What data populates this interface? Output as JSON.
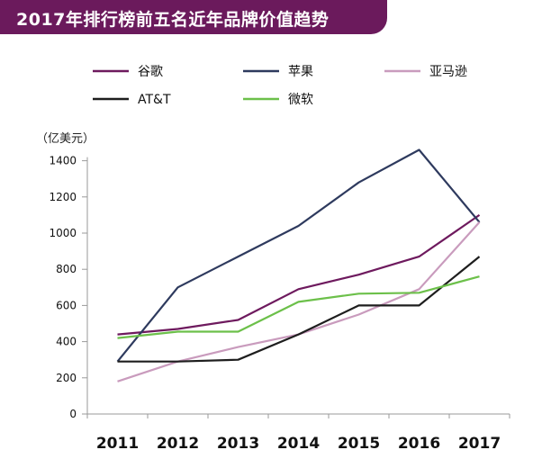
{
  "title": "2017年排行榜前五名近年品牌价值趋势",
  "colors": {
    "banner": "#6b1a5c",
    "axis": "#9a9a9a"
  },
  "chart_data": {
    "type": "line",
    "title": "2017年排行榜前五名近年品牌价值趋势",
    "xlabel": "",
    "ylabel": "（亿美元）",
    "x": [
      "2011",
      "2012",
      "2013",
      "2014",
      "2015",
      "2016",
      "2017"
    ],
    "yticks": [
      0,
      200,
      400,
      600,
      800,
      1000,
      1200,
      1400
    ],
    "ylim": [
      0,
      1400
    ],
    "grid": false,
    "legend_placement": "top",
    "series": [
      {
        "name": "谷歌",
        "color": "#6e1a5e",
        "values": [
          440,
          470,
          520,
          690,
          770,
          870,
          1100
        ]
      },
      {
        "name": "苹果",
        "color": "#2e3a5e",
        "values": [
          290,
          700,
          870,
          1040,
          1280,
          1460,
          1060
        ]
      },
      {
        "name": "亚马逊",
        "color": "#c99bbd",
        "values": [
          180,
          290,
          370,
          440,
          550,
          690,
          1060
        ]
      },
      {
        "name": "AT&T",
        "color": "#1e1e1e",
        "values": [
          290,
          290,
          300,
          440,
          600,
          600,
          870
        ]
      },
      {
        "name": "微软",
        "color": "#6cc04a",
        "values": [
          420,
          455,
          455,
          620,
          665,
          670,
          760
        ]
      }
    ]
  }
}
